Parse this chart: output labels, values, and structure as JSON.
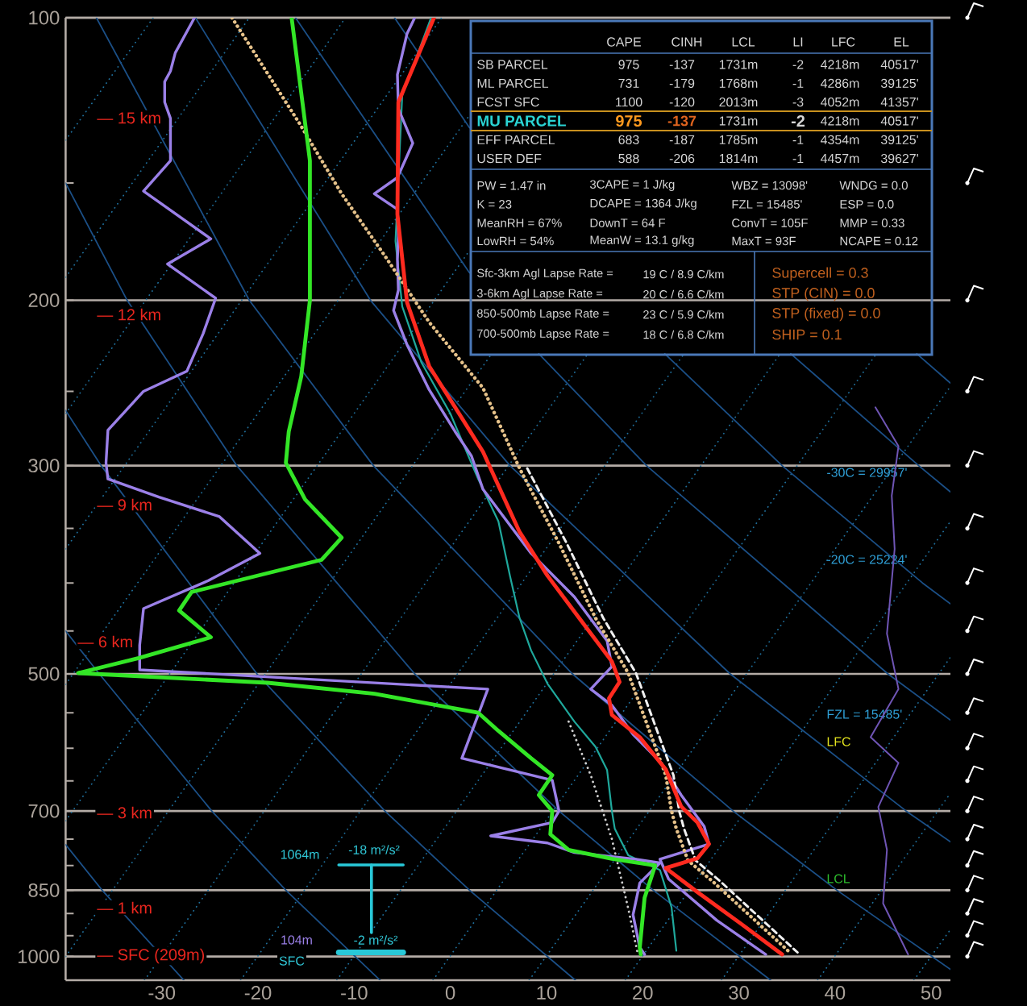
{
  "chart_data": {
    "type": "line",
    "xlim": [
      -40,
      52
    ],
    "ylim": [
      1060,
      100
    ],
    "log": "y",
    "grid": "y",
    "marker": "none",
    "xticks": [
      -30,
      -20,
      -10,
      0,
      10,
      20,
      30,
      40,
      50
    ],
    "yticks": [
      100,
      {
        "value": 150,
        "label": null
      },
      200,
      {
        "value": 250,
        "label": null
      },
      300,
      {
        "value": 350,
        "label": null
      },
      {
        "value": 400,
        "label": null
      },
      {
        "value": 450,
        "label": null
      },
      500,
      {
        "value": 550,
        "label": null
      },
      {
        "value": 600,
        "label": null
      },
      {
        "value": 650,
        "label": null
      },
      700,
      {
        "value": 750,
        "label": null
      },
      {
        "value": 800,
        "label": null
      },
      850,
      {
        "value": 900,
        "label": null
      },
      {
        "value": 950,
        "label": null
      },
      1000
    ],
    "series": [
      {
        "color": "#1f6e9a",
        "line_style": "dotted",
        "x": [
          -40,
          -30.9
        ],
        "values": [
          135,
          100
        ]
      },
      {
        "color": "#1f6e9a",
        "line_style": "dotted",
        "x": [
          -40,
          -20.9
        ],
        "values": [
          189,
          100
        ]
      },
      {
        "color": "#1f6e9a",
        "line_style": "dotted",
        "x": [
          -40,
          -10.9
        ],
        "values": [
          264,
          100
        ]
      },
      {
        "color": "#1f6e9a",
        "line_style": "dotted",
        "x": [
          -40,
          -0.9
        ],
        "values": [
          368,
          100
        ]
      },
      {
        "color": "#1f6e9a",
        "line_style": "dotted",
        "x": [
          -40,
          2
        ],
        "values": [
          513,
          127
        ]
      },
      {
        "color": "#1f6e9a",
        "line_style": "dotted",
        "x": [
          -40,
          2
        ],
        "values": [
          717,
          177
        ]
      },
      {
        "color": "#1f6e9a",
        "line_style": "dotted",
        "x": [
          -40,
          4.3
        ],
        "values": [
          1000,
          228
        ]
      },
      {
        "color": "#1f6e9a",
        "line_style": "dotted",
        "x": [
          -31.8,
          14.3
        ],
        "values": [
          1060,
          228
        ]
      },
      {
        "color": "#1f6e9a",
        "line_style": "dotted",
        "x": [
          -21.8,
          24.3
        ],
        "values": [
          1060,
          228
        ]
      },
      {
        "color": "#1f6e9a",
        "line_style": "dotted",
        "x": [
          -11.8,
          34.3
        ],
        "values": [
          1060,
          228
        ]
      },
      {
        "color": "#1f6e9a",
        "line_style": "dotted",
        "x": [
          -1.8,
          44.3
        ],
        "values": [
          1060,
          228
        ]
      },
      {
        "color": "#1f6e9a",
        "line_style": "dotted",
        "x": [
          8.2,
          52
        ],
        "values": [
          1060,
          247
        ]
      },
      {
        "color": "#1f6e9a",
        "line_style": "dotted",
        "x": [
          18.2,
          52
        ],
        "values": [
          1060,
          344
        ]
      },
      {
        "color": "#1f6e9a",
        "line_style": "dotted",
        "x": [
          28.2,
          52
        ],
        "values": [
          1060,
          480
        ]
      },
      {
        "color": "#1f6e9a",
        "line_style": "dotted",
        "x": [
          38.2,
          52
        ],
        "values": [
          1060,
          670
        ]
      },
      {
        "color": "#1f6e9a",
        "line_style": "dotted",
        "x": [
          48.2,
          52
        ],
        "values": [
          1060,
          936
        ]
      },
      {
        "color": "#1b4f86",
        "line_style": "solid",
        "x": [
          -27.7,
          -36.2,
          -40
        ],
        "values": [
          1060,
          850,
          760
        ]
      },
      {
        "color": "#1b4f86",
        "line_style": "solid",
        "x": [
          -7.3,
          -17.1,
          -24.8,
          -36.5,
          -40
        ],
        "values": [
          1060,
          850,
          700,
          500,
          450
        ]
      },
      {
        "color": "#1b4f86",
        "line_style": "solid",
        "x": [
          13,
          2,
          -6.8,
          -20.1,
          -36.3,
          -40
        ],
        "values": [
          1060,
          850,
          700,
          500,
          300,
          262
        ]
      },
      {
        "color": "#1b4f86",
        "line_style": "solid",
        "x": [
          33.3,
          21.1,
          11.3,
          -3.7,
          -22.2,
          -33.6,
          -40
        ],
        "values": [
          1060,
          850,
          700,
          500,
          300,
          200,
          150
        ]
      },
      {
        "color": "#1b4f86",
        "line_style": "solid",
        "x": [
          52,
          40.2,
          29.4,
          12.7,
          -8,
          -20.9,
          -36.8
        ],
        "values": [
          1032,
          850,
          700,
          500,
          300,
          200,
          100
        ]
      },
      {
        "color": "#1b4f86",
        "line_style": "solid",
        "x": [
          52,
          47.4,
          29.1,
          6.2,
          -8.3,
          -26.5
        ],
        "values": [
          755,
          700,
          500,
          300,
          200,
          100
        ]
      },
      {
        "color": "#1b4f86",
        "line_style": "solid",
        "x": [
          52,
          45.5,
          20.4,
          9.2
        ],
        "values": [
          560,
          500,
          300,
          228
        ]
      },
      {
        "color": "#1b4f86",
        "line_style": "solid",
        "x": [
          2,
          -16.1
        ],
        "values": [
          187,
          100
        ]
      },
      {
        "color": "#1b4f86",
        "line_style": "solid",
        "x": [
          52,
          49.1,
          34.5,
          22.3
        ],
        "values": [
          421,
          400,
          300,
          228
        ]
      },
      {
        "color": "#1b4f86",
        "line_style": "solid",
        "x": [
          2,
          -5.8
        ],
        "values": [
          131,
          100
        ]
      },
      {
        "color": "#1b4f86",
        "line_style": "solid",
        "x": [
          52,
          48.7,
          35.4
        ],
        "values": [
          320,
          300,
          228
        ]
      },
      {
        "color": "#1b4f86",
        "line_style": "solid",
        "x": [
          52,
          48.5
        ],
        "values": [
          245,
          228
        ]
      },
      {
        "color": "#28c8d8",
        "line_style": "solid",
        "x": [
          -11.6,
          -4.9
        ],
        "values": [
          799,
          799
        ]
      },
      {
        "color": "#28c8d8",
        "line_style": "solid",
        "x": [
          -8.2,
          -8.2
        ],
        "values": [
          799,
          943
        ]
      },
      {
        "color": "#28c8d8",
        "line_style": "solid",
        "x": [
          -11.6,
          -4.9
        ],
        "values": [
          990,
          990
        ]
      },
      {
        "color": "#6f55b5",
        "line_style": "solid",
        "x": [
          44.2,
          46.6,
          45.9,
          46.2,
          45.4,
          46.6,
          43.7,
          46.6,
          44.5,
          45.4,
          45.0,
          47.6
        ],
        "values": [
          260,
          286,
          323,
          368,
          453,
          519,
          584,
          622,
          693,
          770,
          878,
          995
        ]
      },
      {
        "color": "#d0d0d0",
        "line_style": "dotted",
        "x": [
          12.3,
          14.6,
          16.8,
          18.5,
          19.5
        ],
        "values": [
          562,
          641,
          750,
          889,
          995
        ]
      },
      {
        "color": "#1fa89c",
        "line_style": "solid",
        "x": [
          -2.0,
          -5.0,
          -5.7,
          -5.0,
          -3.0,
          0,
          2.9,
          5.0,
          6.2,
          7.2,
          8.4,
          10.1,
          12.9,
          15.1,
          16.3,
          16.8,
          17.1,
          18.5,
          21.8,
          23.0,
          23.5
        ],
        "values": [
          100,
          121,
          173,
          203,
          233,
          264,
          310,
          344,
          393,
          436,
          472,
          512,
          562,
          598,
          633,
          700,
          731,
          780,
          809,
          886,
          986
        ]
      },
      {
        "color": "#9b80e8",
        "line_style": "solid",
        "x": [
          -26.6,
          -28.6,
          -29.1,
          -29.7,
          -29.7,
          -29.1,
          -29.1,
          -31.9,
          -24.9,
          -29.4,
          -24.4,
          -25.7,
          -27.4,
          -31.9,
          -35.6,
          -35.8,
          -35.6,
          -30.3,
          -24.0,
          -19.8,
          -25.2,
          -31.9,
          -32.3,
          -32.3,
          3.9,
          1.2,
          10.6,
          11.3,
          10.6,
          4.2,
          10.1,
          12.9,
          19.3,
          21.8,
          19.7,
          19.0,
          19.7,
          20.2
        ],
        "values": [
          100,
          109,
          114,
          117,
          123,
          128,
          142,
          153,
          172,
          183,
          199,
          217,
          238,
          250,
          275,
          298,
          310,
          324,
          340,
          372,
          398,
          426,
          466,
          495,
          519,
          615,
          649,
          700,
          720,
          744,
          757,
          775,
          788,
          795,
          835,
          903,
          978,
          995
        ]
      },
      {
        "color": "#9b80e8",
        "line_style": "solid",
        "x": [
          -3.7,
          -4.5,
          -5.5,
          -5.4,
          -3.9,
          -5.5,
          -7.9,
          -5.5,
          -5.4,
          -5.5,
          -5.4,
          -5.9,
          -4.5,
          -2.2,
          0.5,
          2.2,
          3.4,
          8.4,
          12.9,
          16.3,
          16.8,
          14.6,
          16.8,
          19.0,
          21.8,
          24.0,
          26.4,
          26.9,
          21.8,
          22.7,
          27.7,
          32.8
        ],
        "values": [
          100,
          104,
          115,
          125,
          136,
          148,
          154,
          160,
          171,
          181,
          195,
          205,
          223,
          249,
          276,
          293,
          318,
          372,
          414,
          461,
          491,
          519,
          540,
          580,
          620,
          673,
          727,
          759,
          788,
          827,
          915,
          995
        ]
      },
      {
        "color": "#e6c28a",
        "line_style": "dotted",
        "x": [
          -22.7,
          -15.6,
          -11.3,
          -6.7,
          -2.2,
          3.4,
          7.2,
          11.3,
          15.1,
          18.5,
          22.4,
          23.0,
          23.5,
          24.7,
          27.4,
          35.3
        ],
        "values": [
          100,
          130,
          154,
          180,
          211,
          248,
          302,
          363,
          436,
          499,
          641,
          700,
          731,
          790,
          834,
          990
        ]
      },
      {
        "color": "#f0f0f0",
        "line_style": "dashed",
        "x": [
          8.0,
          12.1,
          15.9,
          19.3,
          23.2,
          23.8,
          24.3,
          25.5,
          28.2,
          36.1
        ],
        "values": [
          302,
          363,
          436,
          499,
          641,
          700,
          731,
          790,
          834,
          990
        ]
      },
      {
        "color": "#33e626",
        "line_style": "solid",
        "x": [
          -16.5,
          -14.6,
          -14.6,
          -15.5,
          -16.8,
          -17.1,
          -15.1,
          -11.3,
          -13.4,
          -26.9,
          -28.2,
          -24.9,
          -32.4,
          -38.7,
          -19.0,
          -7.9,
          2.9,
          5.0,
          8.4,
          10.6,
          9.2,
          10.6,
          10.4,
          12.3,
          16.8,
          21.3,
          20.2,
          19.7,
          19.8
        ],
        "values": [
          100,
          142,
          200,
          241,
          276,
          298,
          326,
          358,
          378,
          409,
          428,
          457,
          481,
          499,
          511,
          525,
          550,
          575,
          615,
          641,
          673,
          700,
          741,
          770,
          787,
          800,
          866,
          978,
          995
        ]
      },
      {
        "color": "#ff2a1f",
        "line_style": "solid",
        "x": [
          -1.7,
          -5.4,
          -5.5,
          -4.5,
          -2.2,
          0.5,
          3.4,
          7.2,
          10.1,
          13.4,
          16.8,
          17.6,
          16.5,
          16.8,
          19.7,
          22.4,
          24.0,
          25.7,
          26.9,
          25.7,
          22.4,
          25.7,
          30.3,
          34.5
        ],
        "values": [
          100,
          123,
          162,
          201,
          235,
          260,
          290,
          353,
          393,
          436,
          485,
          510,
          531,
          553,
          584,
          632,
          692,
          720,
          759,
          786,
          805,
          854,
          924,
          995
        ]
      }
    ],
    "annotations": [
      "CAPE",
      "CINH",
      "LCL",
      "LI",
      "LFC",
      "EL",
      "SB PARCEL",
      "975",
      "-137",
      "1731m",
      "-2",
      "4218m",
      "40517'",
      "ML PARCEL",
      "731",
      "-179",
      "1768m",
      "-1",
      "4286m",
      "39125'",
      "FCST SFC",
      "1100",
      "-120",
      "2013m",
      "-3",
      "4052m",
      "41357'",
      "MU PARCEL",
      "975",
      "-137",
      "1731m",
      "-2",
      "4218m",
      "40517'",
      "EFF PARCEL",
      "683",
      "-187",
      "1785m",
      "-1",
      "4354m",
      "39125'",
      "USER DEF",
      "588",
      "-206",
      "1814m",
      "-1",
      "4457m",
      "39627'",
      "PW = 1.47 in",
      "3CAPE = 1 J/kg",
      "WBZ = 13098'",
      "WNDG = 0.0",
      "K = 23",
      "DCAPE = 1364 J/kg",
      "FZL = 15485'",
      "ESP = 0.0",
      "MeanRH = 67%",
      "DownT = 64 F",
      "ConvT = 105F",
      "MMP = 0.33",
      "LowRH = 54%",
      "MeanW = 13.1 g/kg",
      "MaxT = 93F",
      "NCAPE = 0.12",
      "Sfc-3km Agl Lapse Rate =",
      "19 C / 8.9 C/km",
      "3-6km Agl Lapse Rate =",
      "20 C / 6.6 C/km",
      "850-500mb Lapse Rate =",
      "23 C / 5.9 C/km",
      "700-500mb Lapse Rate =",
      "18 C / 6.8 C/km",
      "Supercell = 0.3",
      "STP (CIN) = 0.0",
      "STP (fixed) = 0.0",
      "SHIP = 0.1",
      "— 15 km",
      "— 12 km",
      "— 9 km",
      "— 6 km",
      "— 3 km",
      "— 1 km",
      "— SFC (209m)",
      "1064m",
      "-18 m²/s²",
      "104m",
      "-2 m²/s²",
      "SFC",
      "-30C = 29957'",
      "-20C = 25224'",
      "FZL = 15485'",
      "LFC",
      "LCL"
    ]
  }
}
